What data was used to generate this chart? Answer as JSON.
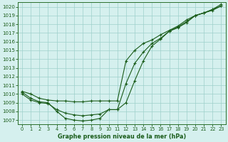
{
  "title": "Graphe pression niveau de la mer (hPa)",
  "xlabel_hours": [
    0,
    1,
    2,
    3,
    4,
    5,
    6,
    7,
    8,
    9,
    10,
    11,
    12,
    13,
    14,
    15,
    16,
    17,
    18,
    19,
    20,
    21,
    22,
    23
  ],
  "ylim": [
    1006.5,
    1020.5
  ],
  "yticks": [
    1007,
    1008,
    1009,
    1010,
    1011,
    1012,
    1013,
    1014,
    1015,
    1016,
    1017,
    1018,
    1019,
    1020
  ],
  "series1": [
    1010.2,
    1009.5,
    1009.1,
    1009.0,
    1008.0,
    1007.2,
    1007.0,
    1006.9,
    1007.0,
    1007.2,
    1008.2,
    1008.2,
    1009.0,
    1011.5,
    1013.8,
    1015.5,
    1016.3,
    1017.2,
    1017.6,
    1018.2,
    1019.0,
    1019.3,
    1019.7,
    1020.3
  ],
  "series2": [
    1010.0,
    1009.3,
    1009.0,
    1008.9,
    1008.2,
    1007.8,
    1007.6,
    1007.5,
    1007.6,
    1007.7,
    1008.2,
    1008.2,
    1011.2,
    1013.5,
    1014.8,
    1015.8,
    1016.4,
    1017.2,
    1017.7,
    1018.3,
    1019.0,
    1019.3,
    1019.6,
    1020.1
  ],
  "series3": [
    1010.3,
    1010.0,
    1009.5,
    1009.3,
    1009.2,
    1009.2,
    1009.1,
    1009.1,
    1009.2,
    1009.2,
    1009.2,
    1009.2,
    1013.8,
    1015.0,
    1015.8,
    1016.2,
    1016.8,
    1017.3,
    1017.8,
    1018.5,
    1019.0,
    1019.3,
    1019.7,
    1020.1
  ],
  "line_color": "#1a5c1a",
  "marker_color": "#1a5c1a",
  "bg_color": "#d5f0ee",
  "grid_color": "#9ecfcb",
  "axis_color": "#2a6e2a",
  "label_color": "#1a5c1a",
  "title_color": "#1a5c1a",
  "marker": "+",
  "markersize": 3.5,
  "linewidth": 0.8
}
